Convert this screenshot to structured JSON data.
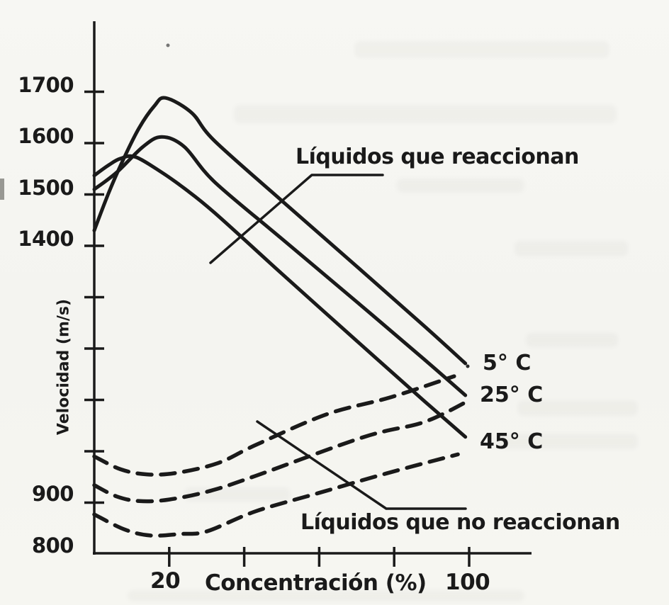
{
  "figure": {
    "y_axis": {
      "title": "Velocidad (m/s)",
      "tick_labels": [
        "1700",
        "1600",
        "1500",
        "1400",
        "900",
        "800"
      ]
    },
    "x_axis": {
      "title": "Concentración (%)",
      "tick_labels": [
        "20",
        "100"
      ]
    },
    "annotations": {
      "solid_label": "Líquidos que reaccionan",
      "dashed_label": "Líquidos que no reaccionan",
      "temp_labels": [
        "5° C",
        "25° C",
        "45° C"
      ]
    }
  },
  "chart_data": {
    "type": "line",
    "title": "",
    "xlabel": "Concentración (%)",
    "ylabel": "Velocidad (m/s)",
    "xlim": [
      0,
      117
    ],
    "ylim": [
      800,
      1840
    ],
    "grid": false,
    "legend": "inline-annotations",
    "x_ticks": [
      20,
      40,
      60,
      80,
      100
    ],
    "x_tick_labels_shown": [
      "20",
      "100"
    ],
    "y_ticks": [
      900,
      1000,
      1100,
      1200,
      1300,
      1400,
      1500,
      1600,
      1700
    ],
    "y_tick_labels_shown": [
      "800",
      "900",
      "1400",
      "1500",
      "1600",
      "1700"
    ],
    "groups": [
      {
        "name": "Líquidos que reaccionan",
        "line_style": "solid",
        "series": [
          {
            "name": "5° C",
            "points": [
              [
                0,
                1430
              ],
              [
                4,
                1506
              ],
              [
                8,
                1572
              ],
              [
                12,
                1630
              ],
              [
                16,
                1672
              ],
              [
                19,
                1688
              ],
              [
                26,
                1659
              ],
              [
                32,
                1605
              ],
              [
                50,
                1488
              ],
              [
                70,
                1360
              ],
              [
                88,
                1244
              ],
              [
                99,
                1171
              ]
            ]
          },
          {
            "name": "25° C",
            "points": [
              [
                0,
                1510
              ],
              [
                6,
                1543
              ],
              [
                13,
                1593
              ],
              [
                18,
                1612
              ],
              [
                24,
                1593
              ],
              [
                32,
                1525
              ],
              [
                50,
                1414
              ],
              [
                70,
                1291
              ],
              [
                88,
                1179
              ],
              [
                99,
                1109
              ]
            ]
          },
          {
            "name": "45° C",
            "points": [
              [
                0,
                1537
              ],
              [
                4,
                1558
              ],
              [
                7,
                1570
              ],
              [
                11,
                1573
              ],
              [
                18,
                1543
              ],
              [
                24,
                1512
              ],
              [
                32,
                1465
              ],
              [
                50,
                1346
              ],
              [
                70,
                1215
              ],
              [
                88,
                1098
              ],
              [
                99,
                1028
              ]
            ]
          }
        ]
      },
      {
        "name": "Líquidos que no reaccionan",
        "line_style": "dashed",
        "series": [
          {
            "name": "5° C",
            "points": [
              [
                0,
                990
              ],
              [
                7,
                965
              ],
              [
                14,
                955
              ],
              [
                22,
                958
              ],
              [
                33,
                977
              ],
              [
                43,
                1012
              ],
              [
                62,
                1072
              ],
              [
                79,
                1105
              ],
              [
                96,
                1146
              ]
            ]
          },
          {
            "name": "25° C",
            "points": [
              [
                0,
                934
              ],
              [
                6,
                912
              ],
              [
                12,
                903
              ],
              [
                20,
                906
              ],
              [
                31,
                923
              ],
              [
                43,
                952
              ],
              [
                72,
                1028
              ],
              [
                88,
                1057
              ],
              [
                100,
                1099
              ]
            ]
          },
          {
            "name": "45° C",
            "points": [
              [
                0,
                877
              ],
              [
                8,
                848
              ],
              [
                15,
                836
              ],
              [
                23,
                839
              ],
              [
                30,
                844
              ],
              [
                43,
                883
              ],
              [
                60,
                919
              ],
              [
                78,
                957
              ],
              [
                97,
                994
              ]
            ]
          }
        ]
      }
    ]
  }
}
